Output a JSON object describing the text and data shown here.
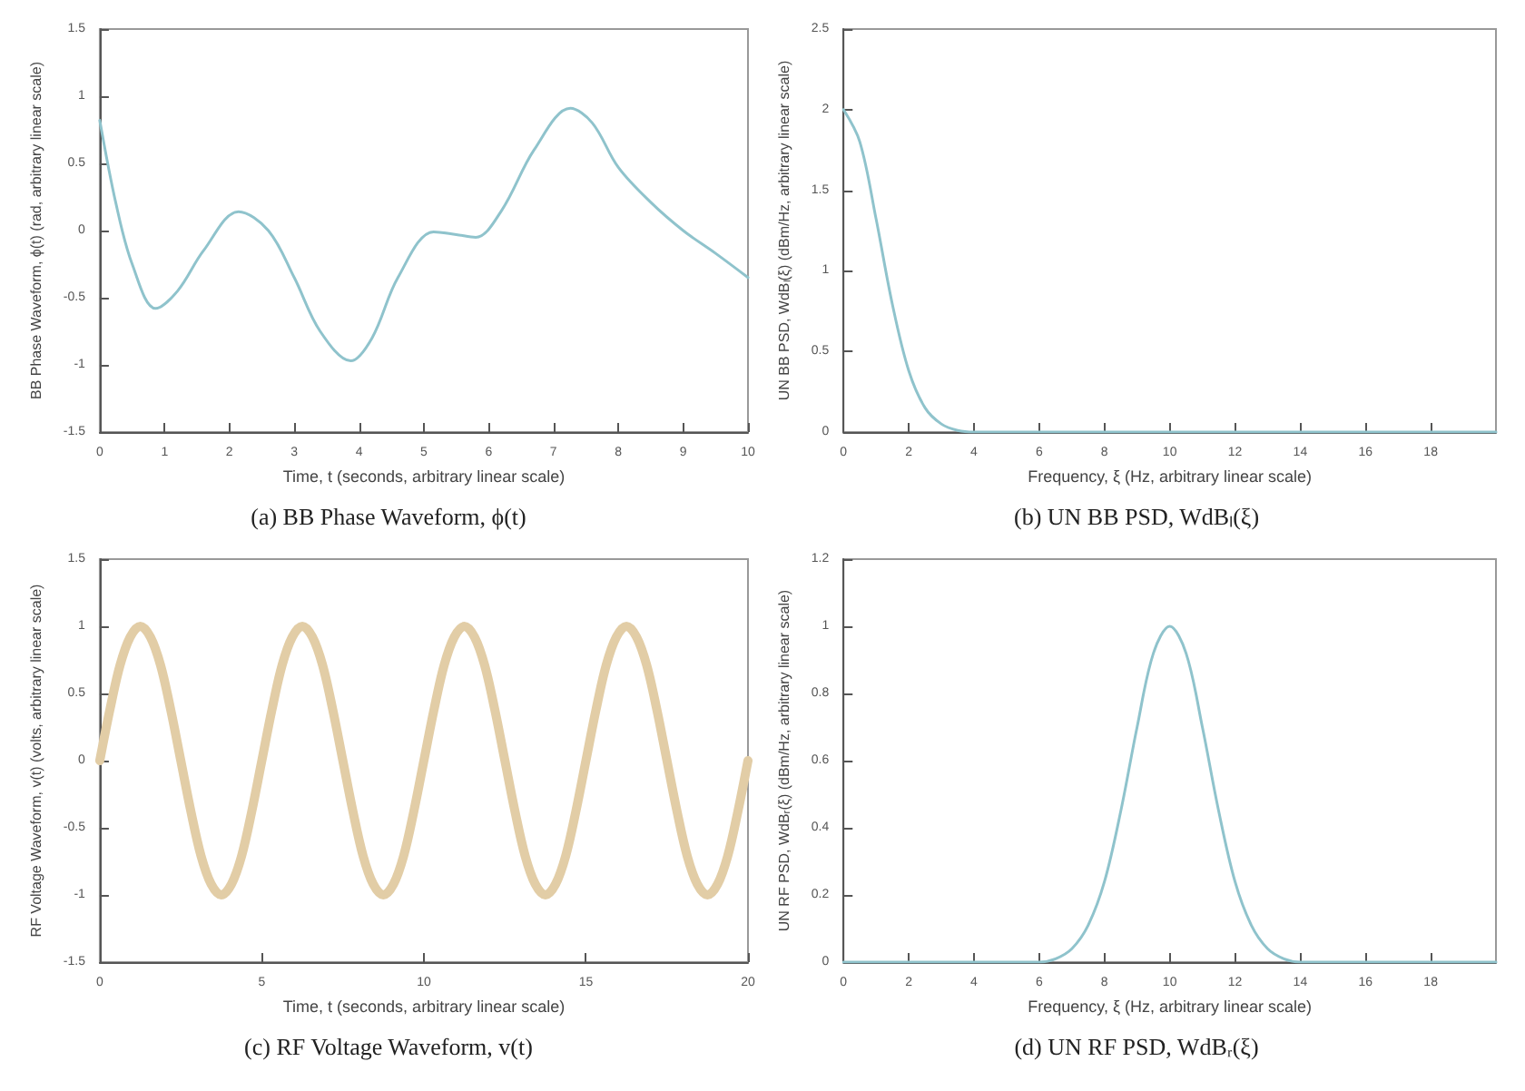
{
  "chart_data": [
    {
      "type": "line",
      "title": "(a) BB Phase Waveform, ϕ(t)",
      "xlabel": "Time, t (seconds, arbitrary linear scale)",
      "ylabel": "BB Phase Waveform, ϕ(t) (rad, arbitrary linear scale)",
      "xlim": [
        0,
        10
      ],
      "xticks": [
        0,
        1,
        2,
        3,
        4,
        5,
        6,
        7,
        8,
        9,
        10
      ],
      "ylim": [
        -1.5,
        1.5
      ],
      "yticks": [
        -1.5,
        -1,
        -0.5,
        0,
        0.5,
        1,
        1.5
      ],
      "x": [
        0,
        0.25,
        0.5,
        0.86,
        1.2,
        1.6,
        2.14,
        2.6,
        3.0,
        3.4,
        3.87,
        4.2,
        4.6,
        5.15,
        5.5,
        5.8,
        6.2,
        6.7,
        7.26,
        7.6,
        8,
        8.5,
        9,
        9.5,
        10
      ],
      "series": [
        {
          "color": "#8fc3cc",
          "values": [
            0.82,
            0.2,
            -0.25,
            -0.58,
            -0.45,
            -0.15,
            0.14,
            0.0,
            -0.35,
            -0.75,
            -0.97,
            -0.8,
            -0.35,
            -0.01,
            -0.03,
            -0.05,
            0.15,
            0.6,
            0.91,
            0.8,
            0.47,
            0.21,
            0.0,
            -0.17,
            -0.35
          ]
        }
      ]
    },
    {
      "type": "line",
      "title": "(b) UN BB PSD, WdBₗ(ξ)",
      "xlabel": "Frequency, ξ (Hz, arbitrary linear scale)",
      "ylabel": "UN BB PSD, WdBₗ(ξ) (dBm/Hz, arbitrary linear scale)",
      "xlim": [
        0,
        20
      ],
      "xticks": [
        0,
        2,
        4,
        6,
        8,
        10,
        12,
        14,
        16,
        18
      ],
      "ylim": [
        0,
        2.5
      ],
      "yticks": [
        0,
        0.5,
        1,
        1.5,
        2,
        2.5
      ],
      "x": [
        0,
        0.5,
        1,
        1.5,
        2,
        2.5,
        3,
        3.5,
        4,
        6,
        8,
        10,
        12,
        14,
        16,
        18,
        20
      ],
      "series": [
        {
          "color": "#8fc3cc",
          "values": [
            2,
            1.8,
            1.32,
            0.79,
            0.38,
            0.15,
            0.05,
            0.01,
            0,
            0,
            0,
            0,
            0,
            0,
            0,
            0,
            0
          ]
        }
      ]
    },
    {
      "type": "line",
      "title": "(c) RF Voltage Waveform, v(t)",
      "xlabel": "Time, t (seconds, arbitrary linear scale)",
      "ylabel": "RF Voltage Waveform, v(t) (volts, arbitrary linear scale)",
      "xlim": [
        0,
        20
      ],
      "xticks": [
        0,
        5,
        10,
        15,
        20
      ],
      "ylim": [
        -1.5,
        1.5
      ],
      "yticks": [
        -1.5,
        -1,
        -0.5,
        0,
        0.5,
        1,
        1.5
      ],
      "x": [
        0,
        0.3125,
        0.625,
        0.9375,
        1.25,
        1.5625,
        1.875,
        2.1875,
        2.5,
        2.8125,
        3.125,
        3.4375,
        3.75,
        4.0625,
        4.375,
        4.6875,
        5,
        5.3125,
        5.625,
        5.9375,
        6.25,
        6.5625,
        6.875,
        7.1875,
        7.5,
        7.8125,
        8.125,
        8.4375,
        8.75,
        9.0625,
        9.375,
        9.6875,
        10,
        10.3125,
        10.625,
        10.9375,
        11.25,
        11.5625,
        11.875,
        12.1875,
        12.5,
        12.8125,
        13.125,
        13.4375,
        13.75,
        14.0625,
        14.375,
        14.6875,
        15,
        15.3125,
        15.625,
        15.9375,
        16.25,
        16.5625,
        16.875,
        17.1875,
        17.5,
        17.8125,
        18.125,
        18.4375,
        18.75,
        19.0625,
        19.375,
        19.6875,
        20
      ],
      "series": [
        {
          "color": "#e2cda6",
          "values": [
            0,
            0.38,
            0.71,
            0.92,
            1,
            0.92,
            0.71,
            0.38,
            0,
            -0.38,
            -0.71,
            -0.92,
            -1,
            -0.92,
            -0.71,
            -0.38,
            0,
            0.38,
            0.71,
            0.92,
            1,
            0.92,
            0.71,
            0.38,
            0,
            -0.38,
            -0.71,
            -0.92,
            -1,
            -0.92,
            -0.71,
            -0.38,
            0,
            0.38,
            0.71,
            0.92,
            1,
            0.92,
            0.71,
            0.38,
            0,
            -0.38,
            -0.71,
            -0.92,
            -1,
            -0.92,
            -0.71,
            -0.38,
            0,
            0.38,
            0.71,
            0.92,
            1,
            0.92,
            0.71,
            0.38,
            0,
            -0.38,
            -0.71,
            -0.92,
            -1,
            -0.92,
            -0.71,
            -0.38,
            0
          ]
        }
      ]
    },
    {
      "type": "line",
      "title": "(d) UN RF PSD, WdBᵣ(ξ)",
      "xlabel": "Frequency, ξ (Hz, arbitrary linear scale)",
      "ylabel": "UN RF PSD, WdBᵣ(ξ) (dBm/Hz, arbitrary linear scale)",
      "xlim": [
        0,
        20
      ],
      "xticks": [
        0,
        2,
        4,
        6,
        8,
        10,
        12,
        14,
        16,
        18
      ],
      "ylim": [
        0,
        1.2
      ],
      "yticks": [
        0,
        0.2,
        0.4,
        0.6,
        0.8,
        1,
        1.2
      ],
      "x": [
        0,
        2,
        4,
        6,
        6.5,
        7,
        7.5,
        8,
        8.5,
        9,
        9.5,
        10,
        10.5,
        11,
        11.5,
        12,
        12.5,
        13,
        13.5,
        14,
        16,
        18,
        20
      ],
      "series": [
        {
          "color": "#8fc3cc",
          "values": [
            0,
            0,
            0,
            0,
            0.01,
            0.04,
            0.11,
            0.24,
            0.45,
            0.7,
            0.92,
            1,
            0.92,
            0.7,
            0.45,
            0.24,
            0.11,
            0.04,
            0.01,
            0,
            0,
            0,
            0
          ]
        }
      ]
    }
  ]
}
